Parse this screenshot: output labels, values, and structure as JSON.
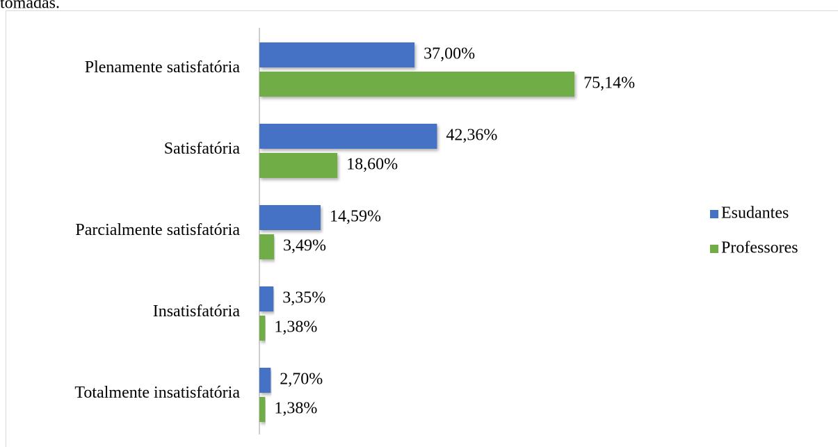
{
  "preceding_text": "tomadas.",
  "chart_data": {
    "type": "bar",
    "orientation": "horizontal",
    "categories": [
      "Plenamente satisfatória",
      "Satisfatória",
      "Parcialmente satisfatória",
      "Insatisfatória",
      "Totalmente insatisfatória"
    ],
    "series": [
      {
        "name": "Esudantes",
        "color": "#4472c4",
        "values": [
          37.0,
          42.36,
          14.59,
          3.35,
          2.7
        ],
        "value_labels": [
          "37,00%",
          "42,36%",
          "14,59%",
          "3,35%",
          "2,70%"
        ]
      },
      {
        "name": "Professores",
        "color": "#70ad47",
        "values": [
          75.14,
          18.6,
          3.49,
          1.38,
          1.38
        ],
        "value_labels": [
          "75,14%",
          "18,60%",
          "3,49%",
          "1,38%",
          "1,38%"
        ]
      }
    ],
    "xlim": [
      0,
      100
    ],
    "legend": "right"
  }
}
